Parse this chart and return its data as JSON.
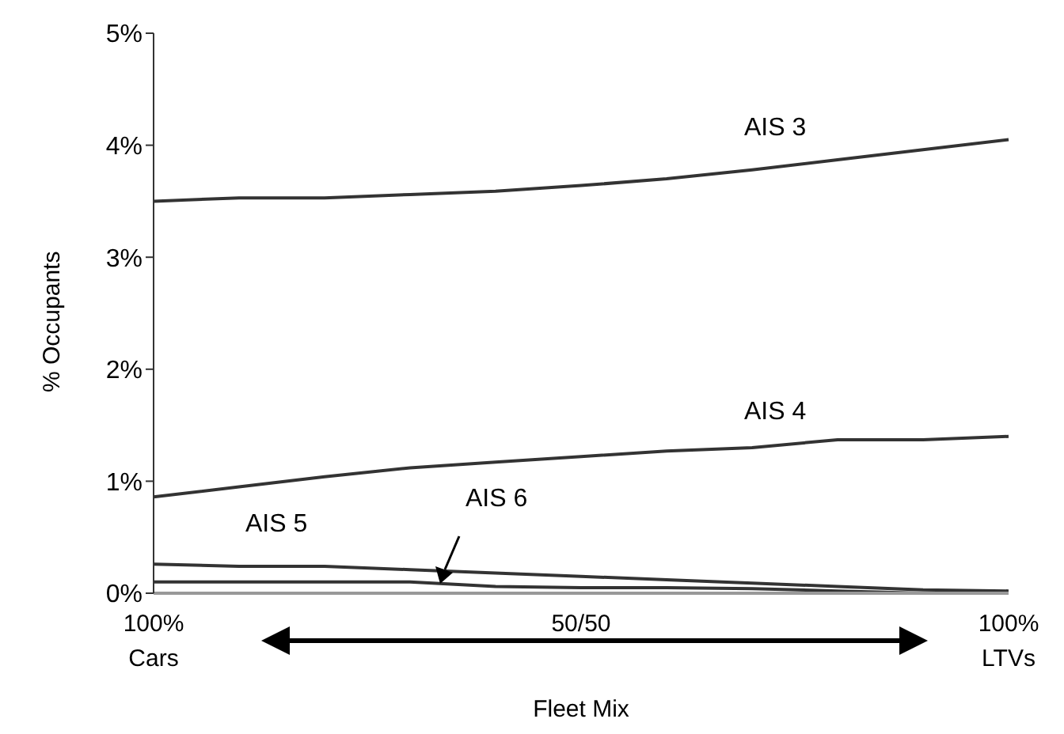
{
  "chart_data": {
    "type": "line",
    "xlabel": "Fleet Mix",
    "ylabel": "% Occupants",
    "categories": [
      "100%\nCars",
      null,
      null,
      null,
      null,
      "50/50",
      null,
      null,
      null,
      null,
      "100%\nLTVs"
    ],
    "series": [
      {
        "name": "AIS 3",
        "color": "#333333",
        "values": [
          3.5,
          3.53,
          3.53,
          3.56,
          3.59,
          3.64,
          3.7,
          3.78,
          3.87,
          3.96,
          4.05
        ]
      },
      {
        "name": "AIS 4",
        "color": "#333333",
        "values": [
          0.86,
          0.95,
          1.04,
          1.12,
          1.17,
          1.22,
          1.27,
          1.3,
          1.37,
          1.37,
          1.4
        ]
      },
      {
        "name": "AIS 5",
        "color": "#333333",
        "values": [
          0.26,
          0.24,
          0.24,
          0.21,
          0.18,
          0.15,
          0.12,
          0.09,
          0.06,
          0.03,
          0.02
        ]
      },
      {
        "name": "AIS 6",
        "color": "#333333",
        "values": [
          0.1,
          0.1,
          0.1,
          0.1,
          0.06,
          0.05,
          0.05,
          0.04,
          0.02,
          0.0,
          0.0
        ]
      }
    ],
    "ylim": [
      0,
      5
    ],
    "yticks": [
      {
        "value": 0,
        "label": "0%"
      },
      {
        "value": 1,
        "label": "1%"
      },
      {
        "value": 2,
        "label": "2%"
      },
      {
        "value": 3,
        "label": "3%"
      },
      {
        "value": 4,
        "label": "4%"
      },
      {
        "value": 5,
        "label": "5%"
      }
    ],
    "grid": false,
    "legend": false,
    "marker": "none",
    "line_style": "solid"
  }
}
